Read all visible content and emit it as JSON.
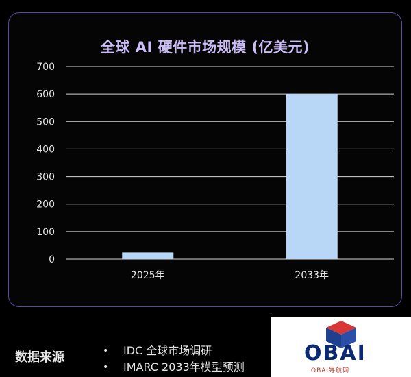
{
  "chart_data": {
    "type": "bar",
    "title": "全球 AI 硬件市场规模 (亿美元)",
    "categories": [
      "2025年",
      "2033年"
    ],
    "values": [
      24,
      600
    ],
    "ylim": [
      0,
      700
    ],
    "yticks": [
      0,
      100,
      200,
      300,
      400,
      500,
      600,
      700
    ],
    "grid": true,
    "colors": {
      "bar": "#b8d7f7",
      "grid": "#d8d8d8",
      "border": "#5b47a8",
      "title": "#cbbdf5"
    }
  },
  "sources": {
    "label": "数据来源",
    "items": [
      "IDC 全球市场调研",
      "IMARC 2033年模型预测"
    ]
  },
  "watermark": {
    "logo_text": "OBAI",
    "sub_text": "OBAI导航网",
    "icon": "cube-logo-icon"
  }
}
